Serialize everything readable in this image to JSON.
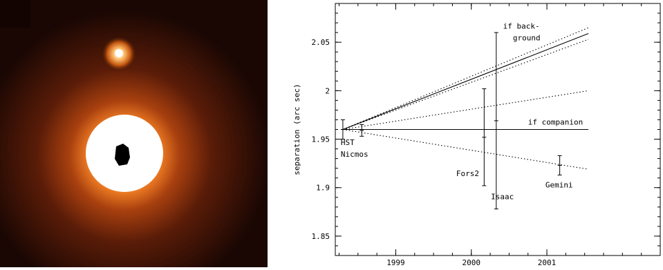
{
  "image_panel": {
    "description_icon": "star-companion-image",
    "colors": {
      "background": "#1a0703",
      "halo_outer": "#7a2a10",
      "halo_mid": "#d2601c",
      "halo_inner": "#ff9a3c",
      "core": "#ffffff",
      "occulter": "#000000"
    }
  },
  "chart_data": {
    "type": "scatter",
    "xlim": [
      1998.2,
      2002.5
    ],
    "ylim": [
      1.83,
      2.09
    ],
    "ylabel": "separation (arc sec)",
    "xticks": [
      1999,
      2000,
      2001
    ],
    "yticks": [
      1.85,
      1.9,
      1.95,
      2,
      2.05
    ],
    "ytick_labels": [
      "1.85",
      "1.9",
      "1.95",
      "2",
      "2.05"
    ],
    "points": [
      {
        "name": "HST",
        "x": 1998.3,
        "y": 1.96,
        "yerr": 0.01
      },
      {
        "name": "Nicmos",
        "x": 1998.55,
        "y": 1.959,
        "yerr": 0.006
      },
      {
        "name": "Fors2",
        "x": 2000.17,
        "y": 1.952,
        "yerr": 0.05
      },
      {
        "name": "Isaac",
        "x": 2000.33,
        "y": 1.969,
        "yerr": 0.091
      },
      {
        "name": "Gemini",
        "x": 2001.17,
        "y": 1.923,
        "yerr": 0.01
      }
    ],
    "lines": [
      {
        "style": "solid",
        "x": [
          1998.3,
          2001.55
        ],
        "y": [
          1.96,
          2.059
        ]
      },
      {
        "style": "dotted",
        "x": [
          1998.3,
          2001.55
        ],
        "y": [
          1.96,
          2.065
        ]
      },
      {
        "style": "dotted",
        "x": [
          1998.3,
          2001.55
        ],
        "y": [
          1.96,
          2.053
        ]
      },
      {
        "style": "dotted",
        "x": [
          1998.3,
          2001.55
        ],
        "y": [
          1.96,
          2.0
        ]
      },
      {
        "style": "dotted",
        "x": [
          1998.3,
          2001.55
        ],
        "y": [
          1.96,
          1.919
        ]
      },
      {
        "style": "solid",
        "x": [
          1998.3,
          2001.55
        ],
        "y": [
          1.96,
          1.96
        ]
      }
    ],
    "annotations": {
      "background_line1": "if back-",
      "background_line2": "ground",
      "companion": "if companion",
      "hst": "HST",
      "nicmos": "Nicmos",
      "fors2": "Fors2",
      "isaac": "Isaac",
      "gemini": "Gemini"
    }
  }
}
